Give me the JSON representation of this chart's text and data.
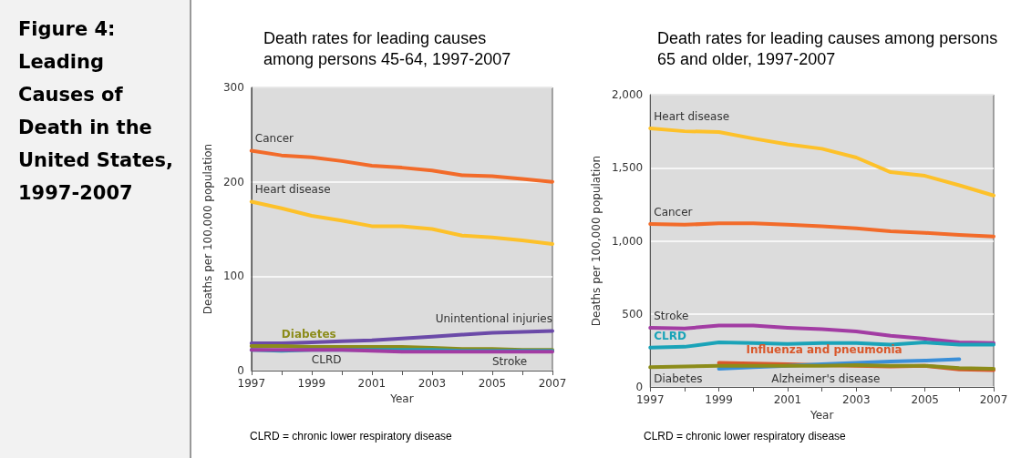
{
  "chart_data": [
    {
      "type": "other",
      "title": "Figure 4: Leading Causes of Death in the United States, 1997-2007"
    },
    {
      "type": "line",
      "title": "Death rates for leading causes among persons 45-64, 1997-2007",
      "xlabel": "Year",
      "ylabel": "Deaths per 100,000 population",
      "annotations": [
        "CLRD = chronic lower respiratory disease"
      ],
      "x": [
        1997,
        1998,
        1999,
        2000,
        2001,
        2002,
        2003,
        2004,
        2005,
        2006,
        2007
      ],
      "xlim": [
        1997,
        2007
      ],
      "xticks": [
        1997,
        {
          "value": 1998,
          "label": null
        },
        1999,
        {
          "value": 2000,
          "label": null
        },
        2001,
        {
          "value": 2002,
          "label": null
        },
        2003,
        {
          "value": 2004,
          "label": null
        },
        2005,
        {
          "value": 2006,
          "label": null
        },
        2007
      ],
      "ylim": [
        0,
        300
      ],
      "yticks": [
        0,
        100,
        200,
        300
      ],
      "grid": "y",
      "marker": "none",
      "series": [
        {
          "name": "Cancer",
          "color": "#f26b2a",
          "values": [
            233,
            228,
            226,
            222,
            217,
            215,
            212,
            207,
            206,
            203,
            200
          ]
        },
        {
          "name": "Heart disease",
          "color": "#fdc12a",
          "values": [
            179,
            172,
            164,
            159,
            153,
            153,
            150,
            143,
            141,
            138,
            134
          ]
        },
        {
          "name": "Unintentional injuries",
          "color": "#6b4aa8",
          "values": [
            29,
            29,
            30,
            31,
            32,
            34,
            36,
            38,
            40,
            41,
            42
          ]
        },
        {
          "name": "Diabetes",
          "color": "#8c8c1a",
          "values": [
            26,
            26,
            25,
            25,
            25,
            25,
            24,
            23,
            23,
            22,
            22
          ]
        },
        {
          "name": "CLRD",
          "color": "#1aa3b8",
          "values": [
            22,
            21,
            22,
            22,
            22,
            22,
            22,
            21,
            21,
            21,
            21
          ]
        },
        {
          "name": "Stroke",
          "color": "#a23ca3",
          "values": [
            22,
            22,
            22,
            22,
            21,
            20,
            20,
            20,
            20,
            20,
            20
          ]
        }
      ]
    },
    {
      "type": "line",
      "title": "Death rates for leading causes among persons 65 and older, 1997-2007",
      "xlabel": "Year",
      "ylabel": "Deaths per 100,000 population",
      "annotations": [
        "CLRD = chronic lower respiratory disease"
      ],
      "x": [
        1997,
        1998,
        1999,
        2000,
        2001,
        2002,
        2003,
        2004,
        2005,
        2006,
        2007
      ],
      "xlim": [
        1997,
        2007
      ],
      "xticks": [
        1997,
        {
          "value": 1998,
          "label": null
        },
        1999,
        {
          "value": 2000,
          "label": null
        },
        2001,
        {
          "value": 2002,
          "label": null
        },
        2003,
        {
          "value": 2004,
          "label": null
        },
        2005,
        {
          "value": 2006,
          "label": null
        },
        2007
      ],
      "ylim": [
        0,
        2000
      ],
      "yticks": [
        0,
        500,
        {
          "value": 1000,
          "label": "1,000"
        },
        {
          "value": 1500,
          "label": "1,500"
        },
        {
          "value": 2000,
          "label": "2,000"
        }
      ],
      "grid": "y",
      "marker": "none",
      "series": [
        {
          "name": "Heart disease",
          "color": "#fdc12a",
          "values": [
            1770,
            1750,
            1745,
            1700,
            1660,
            1630,
            1570,
            1470,
            1445,
            1380,
            1310
          ]
        },
        {
          "name": "Cancer",
          "color": "#f26b2a",
          "values": [
            1115,
            1110,
            1120,
            1120,
            1110,
            1100,
            1085,
            1065,
            1055,
            1040,
            1030
          ]
        },
        {
          "name": "Stroke",
          "color": "#a23ca3",
          "values": [
            405,
            400,
            420,
            420,
            405,
            395,
            380,
            350,
            330,
            305,
            300
          ]
        },
        {
          "name": "CLRD",
          "color": "#1aa3b8",
          "values": [
            270,
            275,
            305,
            300,
            295,
            300,
            300,
            290,
            305,
            290,
            290
          ]
        },
        {
          "name": "Influenza and pneumonia",
          "color": "#d9572a",
          "values": [
            null,
            null,
            165,
            160,
            155,
            150,
            145,
            140,
            145,
            120,
            115
          ]
        },
        {
          "name": "Alzheimer's disease",
          "color": "#3a8fd8",
          "values": [
            null,
            null,
            125,
            135,
            145,
            155,
            165,
            175,
            180,
            190,
            null
          ]
        },
        {
          "name": "Diabetes",
          "color": "#8c8c1a",
          "values": [
            135,
            140,
            145,
            145,
            145,
            145,
            150,
            145,
            145,
            130,
            125
          ]
        }
      ]
    }
  ]
}
